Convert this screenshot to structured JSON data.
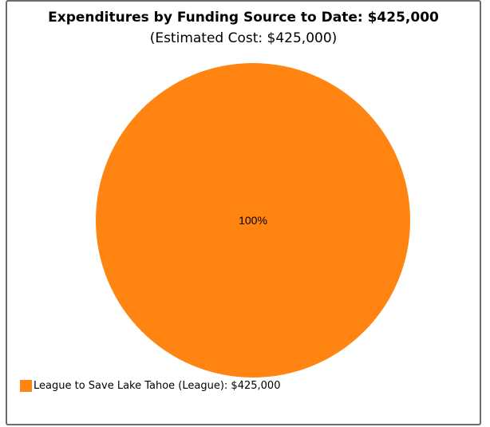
{
  "chart_data": {
    "type": "pie",
    "title": "Expenditures by Funding Source to Date: $425,000",
    "subtitle": "(Estimated Cost: $425,000)",
    "slices": [
      {
        "label": "League to Save Lake Tahoe (League)",
        "value": 425000,
        "percent_label": "100%",
        "legend_text": "League to Save Lake Tahoe (League): $425,000",
        "color": "#FF8412"
      }
    ],
    "legend_position": "bottom-left"
  }
}
